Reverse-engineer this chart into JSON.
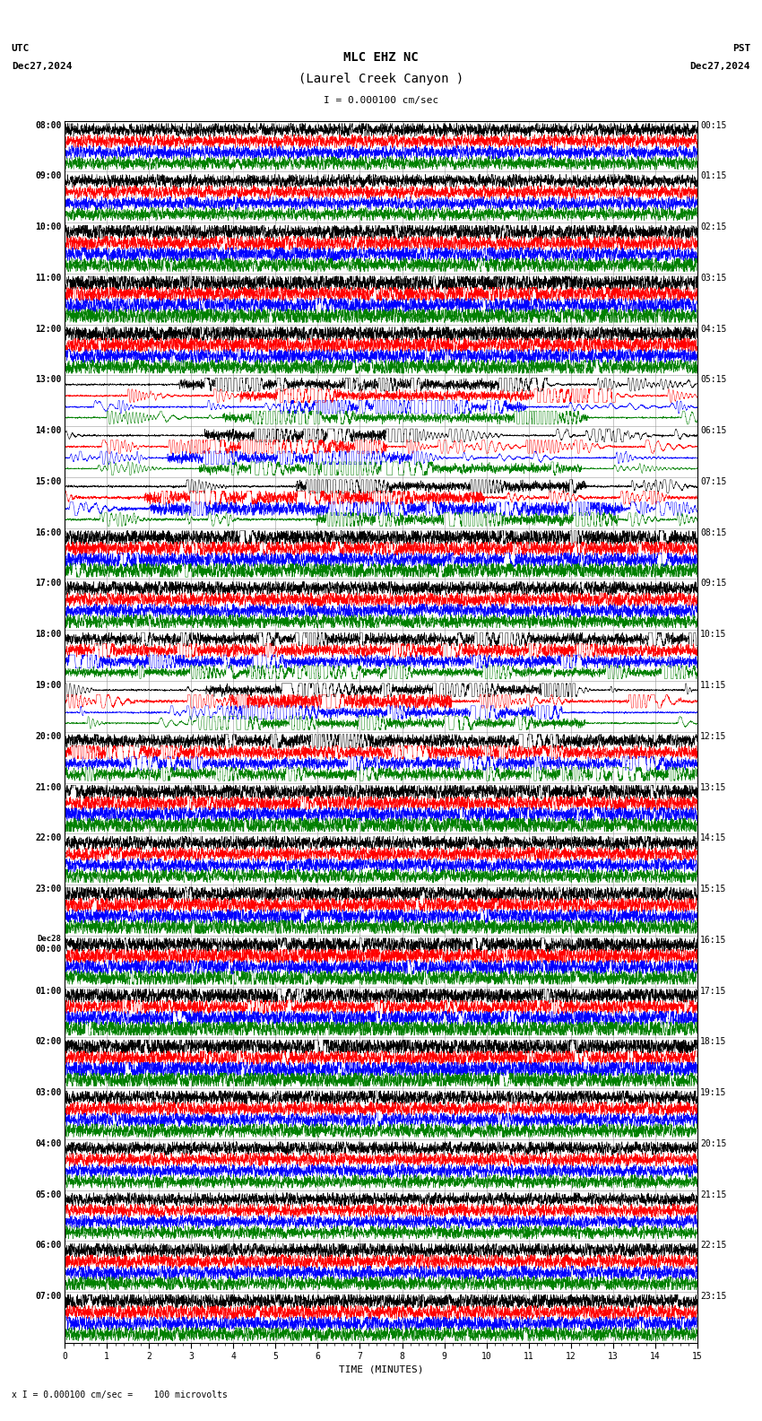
{
  "title_line1": "MLC EHZ NC",
  "title_line2": "(Laurel Creek Canyon )",
  "scale_text": "I = 0.000100 cm/sec",
  "utc_label": "UTC",
  "utc_date": "Dec27,2024",
  "pst_label": "PST",
  "pst_date": "Dec27,2024",
  "xlabel": "TIME (MINUTES)",
  "footer_text": "x I = 0.000100 cm/sec =    100 microvolts",
  "bg_color": "#ffffff",
  "grid_color": "#aaaaaa",
  "left_times": [
    "08:00",
    "09:00",
    "10:00",
    "11:00",
    "12:00",
    "13:00",
    "14:00",
    "15:00",
    "16:00",
    "17:00",
    "18:00",
    "19:00",
    "20:00",
    "21:00",
    "22:00",
    "23:00",
    "Dec28\n00:00",
    "01:00",
    "02:00",
    "03:00",
    "04:00",
    "05:00",
    "06:00",
    "07:00"
  ],
  "right_times": [
    "00:15",
    "01:15",
    "02:15",
    "03:15",
    "04:15",
    "05:15",
    "06:15",
    "07:15",
    "08:15",
    "09:15",
    "10:15",
    "11:15",
    "12:15",
    "13:15",
    "14:15",
    "15:15",
    "16:15",
    "17:15",
    "18:15",
    "19:15",
    "20:15",
    "21:15",
    "22:15",
    "23:15"
  ],
  "n_rows": 24,
  "n_traces_per_row": 4,
  "colors": [
    "black",
    "red",
    "blue",
    "green"
  ],
  "x_min": 0,
  "x_max": 15,
  "x_ticks": [
    0,
    1,
    2,
    3,
    4,
    5,
    6,
    7,
    8,
    9,
    10,
    11,
    12,
    13,
    14,
    15
  ],
  "figsize": [
    8.5,
    15.84
  ],
  "dpi": 100,
  "font_size_title": 10,
  "font_size_labels": 8,
  "font_size_axis": 8,
  "font_size_ticks": 7,
  "font_family": "monospace",
  "activity_profile": [
    0.4,
    0.35,
    0.7,
    1.0,
    0.8,
    3.5,
    4.0,
    3.0,
    1.2,
    0.5,
    2.5,
    3.5,
    2.5,
    0.9,
    0.5,
    0.8,
    1.0,
    1.2,
    1.2,
    0.6,
    0.4,
    0.35,
    0.55,
    0.7
  ]
}
